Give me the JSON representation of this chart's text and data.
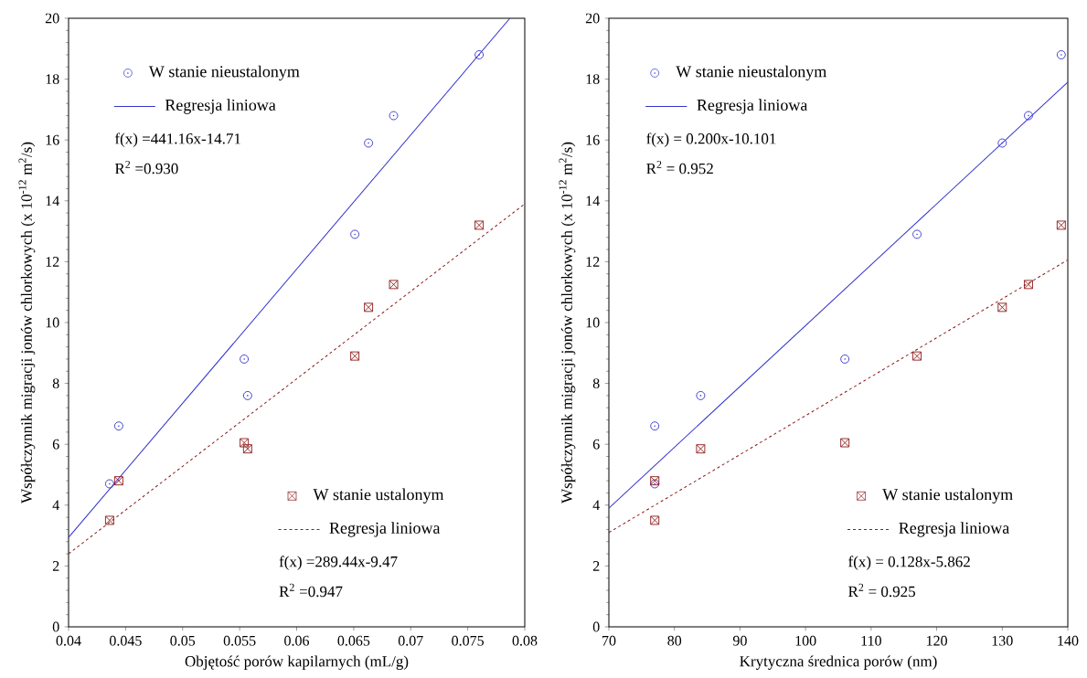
{
  "chart_data": [
    {
      "type": "scatter",
      "xlabel": "Objętość porów kapilarnych (mL/g)",
      "ylabel": "Współczynnik migracji jonów chlorkowych (x 10$^{-12}$ m$^{2}$/s)",
      "xlim": [
        0.04,
        0.08
      ],
      "xticks": [
        0.04,
        0.045,
        0.05,
        0.055,
        0.06,
        0.065,
        0.07,
        0.075,
        0.08
      ],
      "ylim": [
        0,
        20
      ],
      "yticks": [
        0,
        2,
        4,
        6,
        8,
        10,
        12,
        14,
        16,
        18,
        20
      ],
      "grid": false,
      "legend": "top left",
      "series": [
        {
          "name": "W stanie nieustalonym",
          "marker": "circle",
          "color": "#3333cc",
          "x": [
            0.0436,
            0.0444,
            0.0554,
            0.0557,
            0.0651,
            0.0663,
            0.0685,
            0.076
          ],
          "values": [
            4.7,
            6.6,
            8.8,
            7.6,
            12.9,
            15.9,
            16.8,
            18.8
          ]
        },
        {
          "name": "Regresja liniowa",
          "type": "line",
          "line_style": "solid",
          "color": "#3333cc",
          "x": [
            0.04,
            0.0787
          ],
          "values": [
            2.94,
            20.0
          ]
        },
        {
          "name": "W stanie ustalonym",
          "marker": "square",
          "color": "#8b1a1a",
          "x": [
            0.0436,
            0.0444,
            0.0554,
            0.0557,
            0.0651,
            0.0663,
            0.0685,
            0.076
          ],
          "values": [
            3.5,
            4.8,
            6.05,
            5.85,
            8.9,
            10.5,
            11.25,
            13.2
          ]
        },
        {
          "name": "Regresja liniowa",
          "type": "line",
          "line_style": "dashed",
          "color": "#8b1a1a",
          "x": [
            0.04,
            0.08
          ],
          "values": [
            2.4,
            13.9
          ]
        }
      ],
      "annotations": [
        "f(x) =441.16x-14.71",
        "R$^{2}$ =0.930",
        "f(x) =289.44x-9.47",
        "R$^{2}$ =0.947"
      ]
    },
    {
      "type": "scatter",
      "xlabel": "Krytyczna średnica porów (nm)",
      "ylabel": "Współczynnik migracji jonów chlorkowych (x 10$^{-12}$ m$^{2}$/s)",
      "xlim": [
        70,
        140
      ],
      "xticks": [
        70,
        80,
        90,
        100,
        110,
        120,
        130,
        140
      ],
      "ylim": [
        0,
        20
      ],
      "yticks": [
        0,
        2,
        4,
        6,
        8,
        10,
        12,
        14,
        16,
        18,
        20
      ],
      "grid": false,
      "legend": "top left",
      "series": [
        {
          "name": "W stanie nieustalonym",
          "marker": "circle",
          "color": "#3333cc",
          "x": [
            77,
            77,
            84,
            106,
            117,
            130,
            134,
            139
          ],
          "values": [
            6.6,
            4.7,
            7.6,
            8.8,
            12.9,
            15.9,
            16.8,
            18.8
          ]
        },
        {
          "name": "Regresja liniowa",
          "type": "line",
          "line_style": "solid",
          "color": "#3333cc",
          "x": [
            70,
            140
          ],
          "values": [
            3.9,
            17.9
          ]
        },
        {
          "name": "W stanie ustalonym",
          "marker": "square",
          "color": "#8b1a1a",
          "x": [
            77,
            77,
            84,
            106,
            117,
            130,
            134,
            139
          ],
          "values": [
            4.8,
            3.5,
            5.85,
            6.05,
            8.9,
            10.5,
            11.25,
            13.2
          ]
        },
        {
          "name": "Regresja liniowa",
          "type": "line",
          "line_style": "dashed",
          "color": "#8b1a1a",
          "x": [
            70,
            140
          ],
          "values": [
            3.1,
            12.06
          ]
        }
      ],
      "annotations": [
        "f(x) = 0.200x-10.101",
        "R$^{2}$ = 0.952",
        "f(x) = 0.128x-5.862",
        "R$^{2}$ = 0.925"
      ]
    }
  ]
}
